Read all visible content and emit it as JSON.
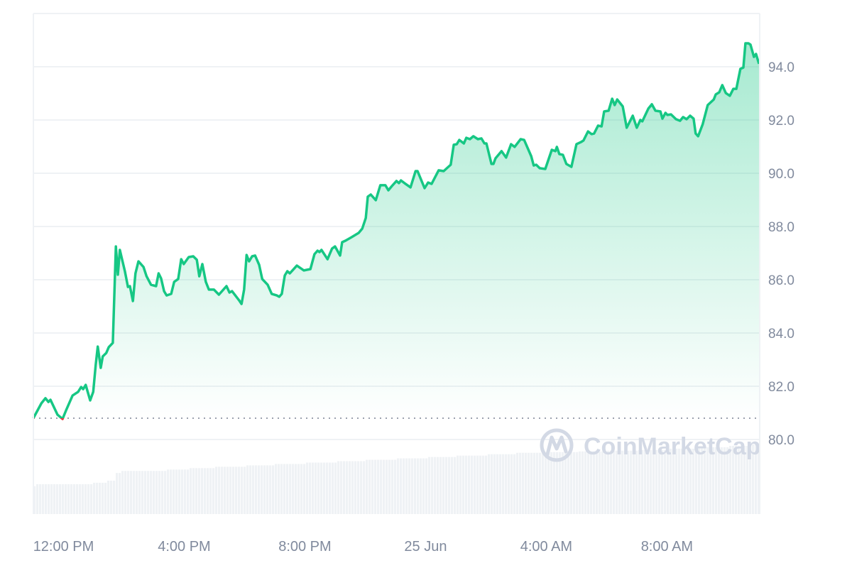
{
  "chart_data": {
    "type": "area",
    "title": "",
    "xlabel": "",
    "ylabel": "",
    "ylim": [
      78.6,
      96.0
    ],
    "y_ticks": [
      "80.0",
      "82.0",
      "84.0",
      "86.0",
      "88.0",
      "90.0",
      "92.0",
      "94.0"
    ],
    "x_ticks": [
      {
        "label": "12:00 PM",
        "t": "24 Jun 12:00"
      },
      {
        "label": "4:00 PM",
        "t": "24 Jun 16:00"
      },
      {
        "label": "8:00 PM",
        "t": "24 Jun 20:00"
      },
      {
        "label": "25 Jun",
        "t": "25 Jun 00:00"
      },
      {
        "label": "4:00 AM",
        "t": "25 Jun 04:00"
      },
      {
        "label": "8:00 AM",
        "t": "25 Jun 08:00"
      }
    ],
    "xlim": [
      "24 Jun 11:00",
      "25 Jun 11:03"
    ],
    "grid": "horizontal",
    "reference_price": 80.8,
    "colors": {
      "up": "#16c784",
      "down": "#ea3943",
      "volume": "#eff2f5",
      "grid": "#eff2f5",
      "text": "#808a9d"
    },
    "watermark": "CoinMarketCap",
    "price": {
      "t": [
        "24 Jun 11:00",
        "24 Jun 11:16",
        "24 Jun 11:24",
        "24 Jun 11:30",
        "24 Jun 11:34",
        "24 Jun 11:48",
        "24 Jun 11:58",
        "24 Jun 12:05",
        "24 Jun 12:18",
        "24 Jun 12:29",
        "24 Jun 12:35",
        "24 Jun 12:39",
        "24 Jun 12:44",
        "24 Jun 12:53",
        "24 Jun 12:59",
        "24 Jun 13:04",
        "24 Jun 13:08",
        "24 Jun 13:14",
        "24 Jun 13:18",
        "24 Jun 13:25",
        "24 Jun 13:30",
        "24 Jun 13:38",
        "24 Jun 13:44",
        "24 Jun 13:48",
        "24 Jun 13:52",
        "24 Jun 14:02",
        "24 Jun 14:08",
        "24 Jun 14:12",
        "24 Jun 14:18",
        "24 Jun 14:23",
        "24 Jun 14:29",
        "24 Jun 14:39",
        "24 Jun 14:45",
        "24 Jun 14:54",
        "24 Jun 15:04",
        "24 Jun 15:09",
        "24 Jun 15:14",
        "24 Jun 15:20",
        "24 Jun 15:25",
        "24 Jun 15:34",
        "24 Jun 15:40",
        "24 Jun 15:48",
        "24 Jun 15:54",
        "24 Jun 15:59",
        "24 Jun 16:09",
        "24 Jun 16:18",
        "24 Jun 16:25",
        "24 Jun 16:30",
        "24 Jun 16:36",
        "24 Jun 16:43",
        "24 Jun 16:49",
        "24 Jun 16:59",
        "24 Jun 17:09",
        "24 Jun 17:24",
        "24 Jun 17:30",
        "24 Jun 17:35",
        "24 Jun 17:49",
        "24 Jun 17:54",
        "24 Jun 17:59",
        "24 Jun 18:04",
        "24 Jun 18:09",
        "24 Jun 18:15",
        "24 Jun 18:21",
        "24 Jun 18:29",
        "24 Jun 18:35",
        "24 Jun 18:46",
        "24 Jun 18:54",
        "24 Jun 19:04",
        "24 Jun 19:09",
        "24 Jun 19:14",
        "24 Jun 19:20",
        "24 Jun 19:25",
        "24 Jun 19:30",
        "24 Jun 19:44",
        "24 Jun 19:58",
        "24 Jun 20:11",
        "24 Jun 20:19",
        "24 Jun 20:25",
        "24 Jun 20:29",
        "24 Jun 20:33",
        "24 Jun 20:45",
        "24 Jun 20:54",
        "24 Jun 21:00",
        "24 Jun 21:10",
        "24 Jun 21:14",
        "24 Jun 21:21",
        "24 Jun 21:33",
        "24 Jun 21:47",
        "24 Jun 21:54",
        "24 Jun 22:01",
        "24 Jun 22:05",
        "24 Jun 22:11",
        "24 Jun 22:21",
        "24 Jun 22:30",
        "24 Jun 22:40",
        "24 Jun 22:46",
        "24 Jun 22:53",
        "24 Jun 23:02",
        "24 Jun 23:07",
        "24 Jun 23:11",
        "24 Jun 23:18",
        "24 Jun 23:30",
        "24 Jun 23:40",
        "24 Jun 23:44",
        "24 Jun 23:58",
        "25 Jun 00:05",
        "25 Jun 00:12",
        "25 Jun 00:26",
        "25 Jun 00:36",
        "25 Jun 00:50",
        "25 Jun 00:56",
        "25 Jun 01:02",
        "25 Jun 01:07",
        "25 Jun 01:16",
        "25 Jun 01:21",
        "25 Jun 01:28",
        "25 Jun 01:35",
        "25 Jun 01:44",
        "25 Jun 01:51",
        "25 Jun 01:57",
        "25 Jun 02:01",
        "25 Jun 02:11",
        "25 Jun 02:15",
        "25 Jun 02:19",
        "25 Jun 02:31",
        "25 Jun 02:40",
        "25 Jun 02:50",
        "25 Jun 02:57",
        "25 Jun 03:09",
        "25 Jun 03:16",
        "25 Jun 03:30",
        "25 Jun 03:35",
        "25 Jun 03:40",
        "25 Jun 03:47",
        "25 Jun 03:58",
        "25 Jun 04:11",
        "25 Jun 04:18",
        "25 Jun 04:21",
        "25 Jun 04:26",
        "25 Jun 04:33",
        "25 Jun 04:40",
        "25 Jun 04:50",
        "25 Jun 05:00",
        "25 Jun 05:09",
        "25 Jun 05:14",
        "25 Jun 05:23",
        "25 Jun 05:30",
        "25 Jun 05:35",
        "25 Jun 05:43",
        "25 Jun 05:50",
        "25 Jun 05:55",
        "25 Jun 06:04",
        "25 Jun 06:11",
        "25 Jun 06:16",
        "25 Jun 06:21",
        "25 Jun 06:32",
        "25 Jun 06:40",
        "25 Jun 06:52",
        "25 Jun 07:00",
        "25 Jun 07:07",
        "25 Jun 07:11",
        "25 Jun 07:23",
        "25 Jun 07:30",
        "25 Jun 07:37",
        "25 Jun 07:47",
        "25 Jun 07:51",
        "25 Jun 07:57",
        "25 Jun 08:01",
        "25 Jun 08:08",
        "25 Jun 08:18",
        "25 Jun 08:26",
        "25 Jun 08:32",
        "25 Jun 08:39",
        "25 Jun 08:46",
        "25 Jun 08:53",
        "25 Jun 08:57",
        "25 Jun 09:02",
        "25 Jun 09:11",
        "25 Jun 09:21",
        "25 Jun 09:33",
        "25 Jun 09:37",
        "25 Jun 09:44",
        "25 Jun 09:50",
        "25 Jun 09:57",
        "25 Jun 10:05",
        "25 Jun 10:12",
        "25 Jun 10:18",
        "25 Jun 10:26",
        "25 Jun 10:32",
        "25 Jun 10:36",
        "25 Jun 10:42",
        "25 Jun 10:46",
        "25 Jun 10:53",
        "25 Jun 10:57",
        "25 Jun 11:03"
      ],
      "values": [
        80.8,
        81.36,
        81.55,
        81.41,
        81.49,
        80.93,
        80.77,
        81.09,
        81.65,
        81.79,
        81.97,
        81.89,
        82.05,
        81.47,
        81.79,
        82.8,
        83.49,
        82.69,
        83.12,
        83.25,
        83.47,
        83.63,
        87.25,
        86.19,
        87.12,
        86.32,
        85.73,
        85.76,
        85.2,
        86.24,
        86.69,
        86.48,
        86.13,
        85.81,
        85.76,
        86.24,
        86.05,
        85.57,
        85.41,
        85.47,
        85.92,
        86.03,
        86.77,
        86.59,
        86.85,
        86.88,
        86.75,
        86.13,
        86.59,
        85.92,
        85.63,
        85.63,
        85.44,
        85.76,
        85.52,
        85.57,
        85.23,
        85.09,
        85.63,
        86.93,
        86.69,
        86.88,
        86.91,
        86.56,
        86.03,
        85.81,
        85.47,
        85.41,
        85.36,
        85.47,
        86.16,
        86.32,
        86.24,
        86.53,
        86.35,
        86.4,
        86.96,
        87.09,
        87.04,
        87.12,
        86.77,
        87.17,
        87.25,
        86.91,
        87.41,
        87.47,
        87.6,
        87.76,
        87.92,
        88.32,
        89.12,
        89.2,
        88.99,
        89.55,
        89.55,
        89.36,
        89.52,
        89.71,
        89.63,
        89.73,
        89.63,
        89.47,
        90.08,
        90.08,
        89.44,
        89.65,
        89.6,
        90.11,
        90.08,
        90.32,
        91.07,
        91.09,
        91.25,
        91.12,
        91.33,
        91.28,
        91.39,
        91.28,
        91.31,
        91.12,
        91.12,
        90.35,
        90.35,
        90.56,
        90.83,
        90.59,
        91.09,
        90.99,
        91.28,
        91.25,
        90.64,
        90.29,
        90.32,
        90.19,
        90.16,
        90.88,
        90.83,
        90.99,
        90.72,
        90.69,
        90.35,
        90.24,
        91.09,
        91.17,
        91.23,
        91.57,
        91.47,
        91.49,
        91.79,
        91.76,
        92.32,
        92.35,
        92.8,
        92.56,
        92.77,
        92.51,
        91.71,
        92.16,
        91.71,
        92.0,
        91.95,
        92.43,
        92.59,
        92.35,
        92.32,
        92.05,
        92.27,
        92.19,
        92.21,
        92.03,
        91.97,
        92.11,
        92.03,
        92.16,
        92.05,
        91.49,
        91.39,
        91.84,
        92.56,
        92.77,
        92.96,
        93.04,
        93.31,
        93.01,
        92.91,
        93.17,
        93.17,
        93.92,
        93.97,
        94.88,
        94.88,
        94.83,
        94.37,
        94.48,
        94.11
      ]
    },
    "volume_relative": {
      "t": [
        "24 Jun 11:00",
        "24 Jun 11:03",
        "24 Jun 12:55",
        "24 Jun 13:25",
        "24 Jun 13:40",
        "24 Jun 13:50",
        "24 Jun 15:20",
        "24 Jun 16:10",
        "24 Jun 17:00",
        "24 Jun 18:00",
        "24 Jun 19:00",
        "24 Jun 20:00",
        "24 Jun 21:00",
        "24 Jun 22:00",
        "24 Jun 23:00",
        "25 Jun 00:00",
        "25 Jun 01:00",
        "25 Jun 02:00",
        "25 Jun 03:00",
        "25 Jun 04:00",
        "25 Jun 05:00",
        "25 Jun 06:00",
        "25 Jun 07:00",
        "25 Jun 08:00",
        "25 Jun 09:00",
        "25 Jun 10:00",
        "25 Jun 10:40"
      ],
      "values": [
        0.4,
        0.43,
        0.45,
        0.48,
        0.59,
        0.62,
        0.64,
        0.66,
        0.68,
        0.7,
        0.72,
        0.74,
        0.76,
        0.78,
        0.8,
        0.82,
        0.84,
        0.86,
        0.88,
        0.89,
        0.9,
        0.91,
        0.92,
        0.94,
        0.96,
        0.98,
        1.0
      ]
    }
  }
}
